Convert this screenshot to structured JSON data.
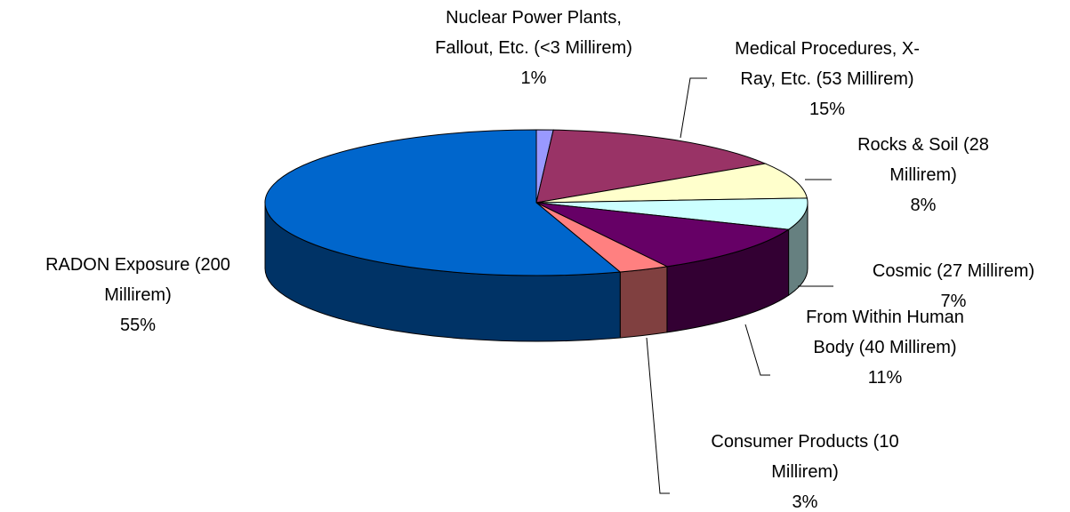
{
  "chart_data": {
    "type": "pie3d",
    "categories": [
      "Nuclear Power Plants, Fallout, Etc. (<3 Millirem)",
      "Medical Procedures, X-Ray, Etc. (53 Millirem)",
      "Rocks & Soil (28 Millirem)",
      "Cosmic (27 Millirem)",
      "From Within Human Body (40 Millirem)",
      "Consumer Products (10 Millirem)",
      "RADON Exposure (200 Millirem)"
    ],
    "values": [
      1,
      15,
      8,
      7,
      11,
      3,
      55
    ],
    "value_labels": [
      "1%",
      "15%",
      "8%",
      "7%",
      "11%",
      "3%",
      "55%"
    ],
    "colors": [
      "#9999ff",
      "#993366",
      "#ffffcc",
      "#ccffff",
      "#660066",
      "#ff8080",
      "#0066cc"
    ]
  }
}
